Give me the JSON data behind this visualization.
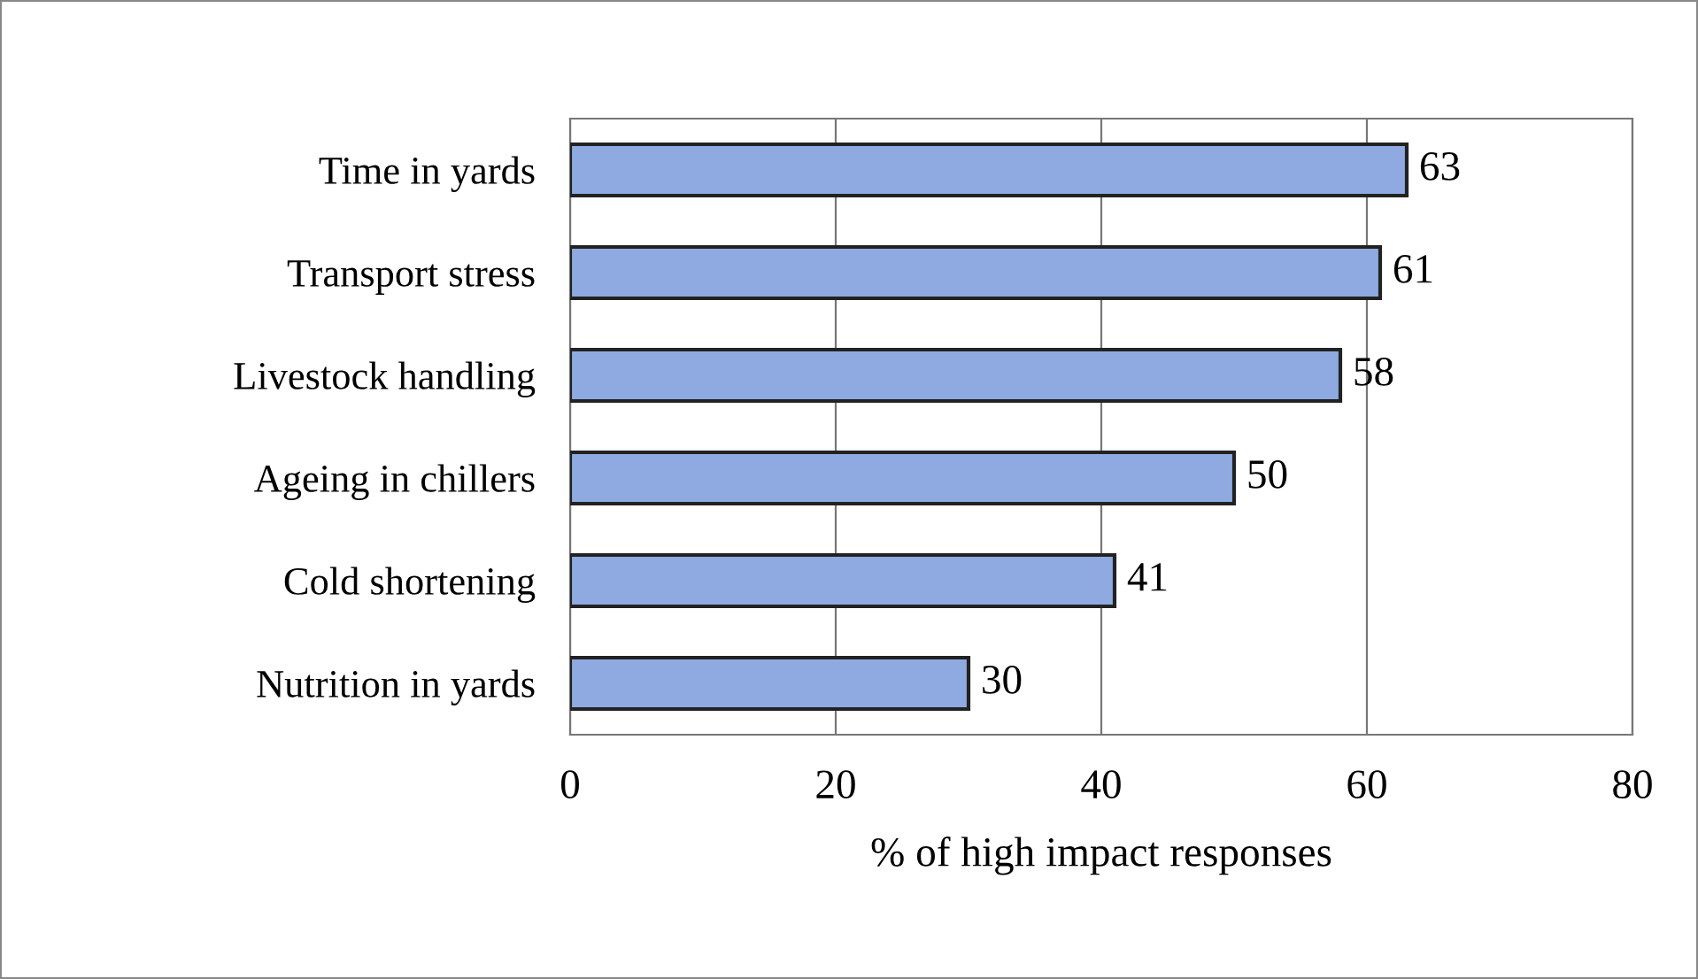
{
  "chart_data": {
    "type": "bar",
    "orientation": "horizontal",
    "xlabel": "% of high impact responses",
    "categories": [
      "Time in yards",
      "Transport stress",
      "Livestock handling",
      "Ageing in chillers",
      "Cold shortening",
      "Nutrition in yards"
    ],
    "values": [
      63,
      61,
      58,
      50,
      41,
      30
    ],
    "color": "#8eaae0",
    "xlim": [
      0,
      80
    ],
    "xticks": [
      0,
      20,
      40,
      60,
      80
    ],
    "grid": "x",
    "data_labels": true
  }
}
